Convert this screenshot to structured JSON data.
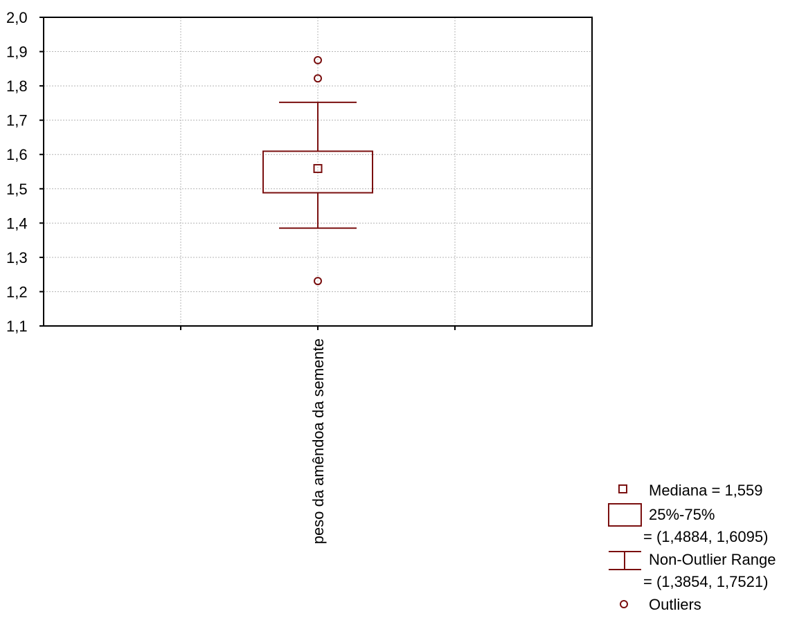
{
  "chart_data": {
    "type": "boxplot",
    "title": "",
    "xlabel": "",
    "ylabel": "",
    "ylim": [
      1.1,
      2.0
    ],
    "yticks": [
      "1,1",
      "1,2",
      "1,3",
      "1,4",
      "1,5",
      "1,6",
      "1,7",
      "1,8",
      "1,9",
      "2,0"
    ],
    "grid": true,
    "legend_position": "bottom-right",
    "color": "#7a0f0f",
    "categories": [
      "peso da amêndoa da semente"
    ],
    "series": [
      {
        "category": "peso da amêndoa da semente",
        "median": 1.559,
        "q1": 1.4884,
        "q3": 1.6095,
        "whisker_low": 1.3854,
        "whisker_high": 1.7521,
        "outliers": [
          1.875,
          1.822,
          1.231
        ]
      }
    ],
    "legend": {
      "median": "Mediana = 1,559",
      "box": "25%-75%",
      "box_values": "= (1,4884, 1,6095)",
      "whisker": "Non-Outlier Range",
      "whisker_values": "= (1,3854, 1,7521)",
      "outliers": "Outliers"
    }
  }
}
